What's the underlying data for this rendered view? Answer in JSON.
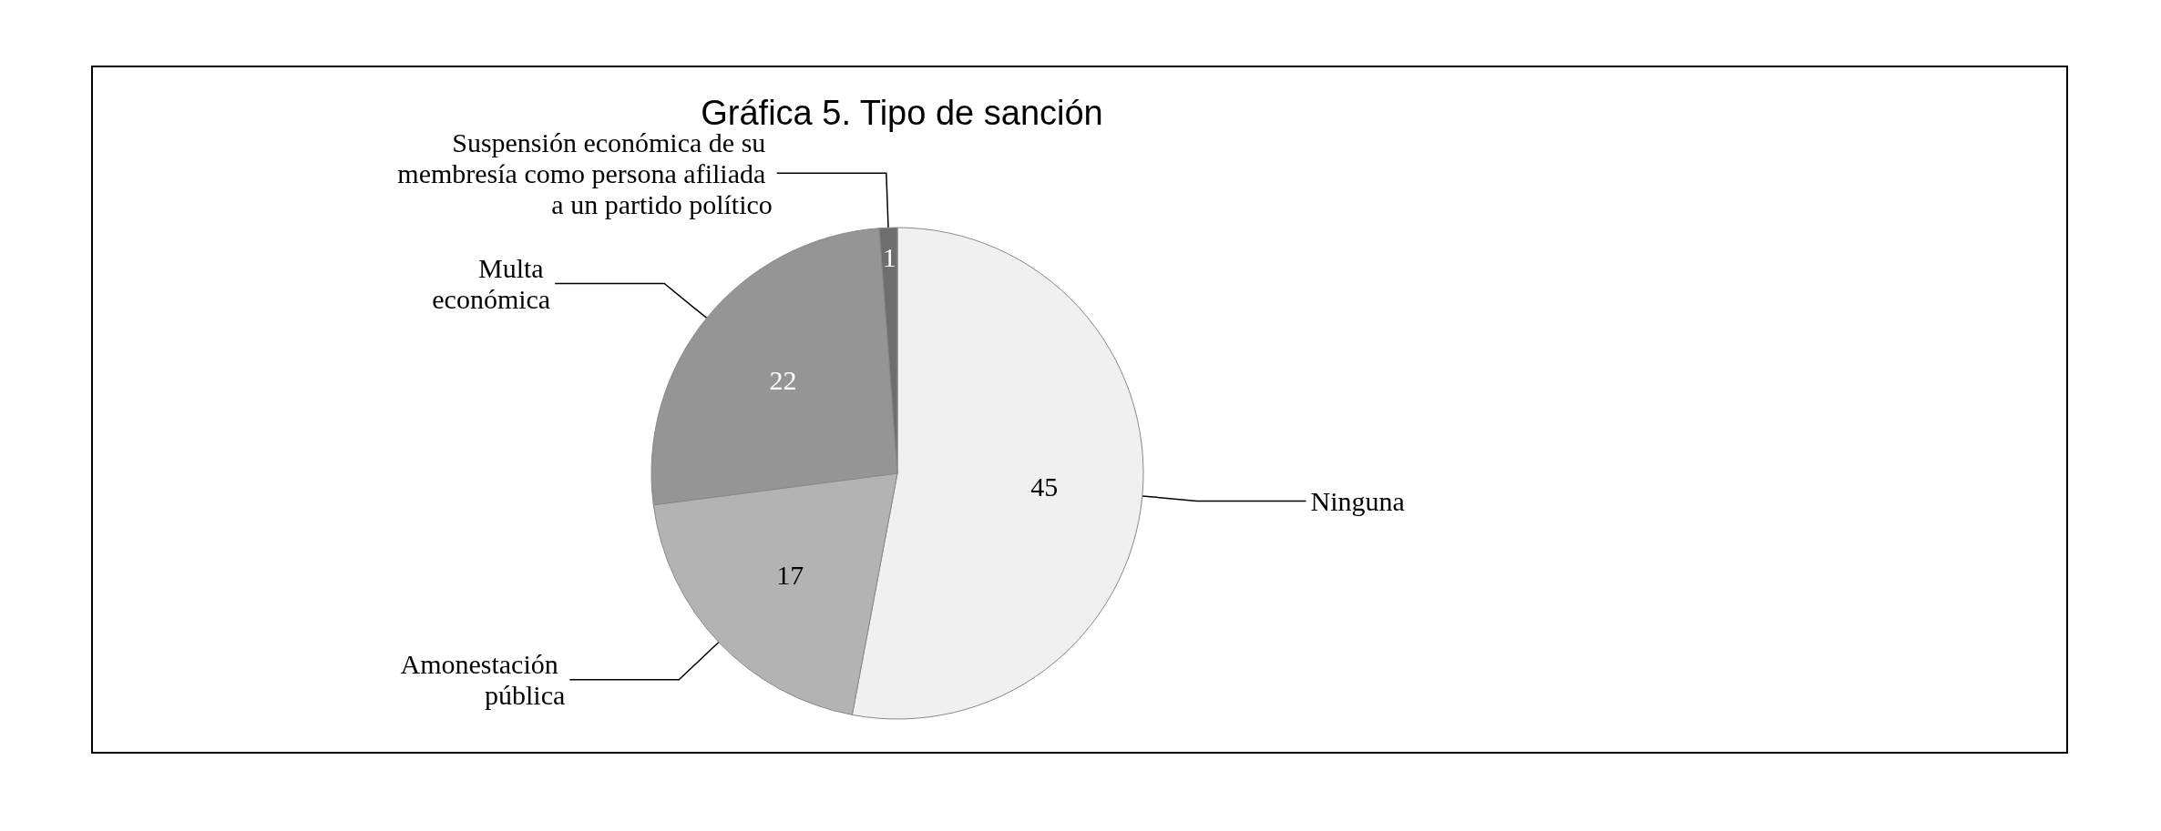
{
  "chart_data": {
    "type": "pie",
    "title": "Gráfica 5. Tipo de sanción",
    "categories": [
      "Ninguna",
      "Amonestación pública",
      "Multa económica",
      "Suspensión económica de su membresía como persona afiliada a un partido político"
    ],
    "values": [
      45,
      17,
      22,
      1
    ],
    "colors": [
      "#f0f0f0",
      "#b3b3b3",
      "#959595",
      "#6e6e6e"
    ],
    "data_labels": true,
    "legend": false
  }
}
